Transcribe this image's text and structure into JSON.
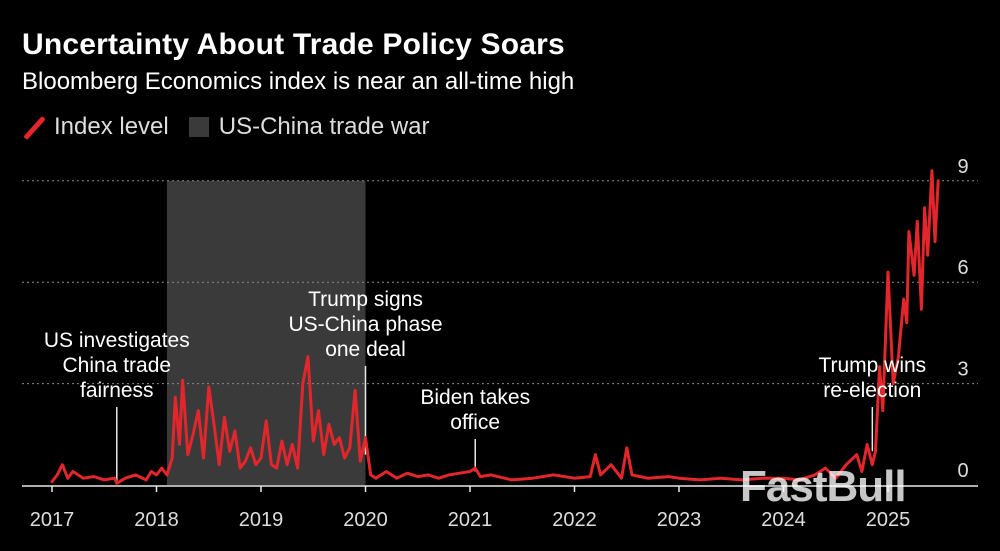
{
  "chart_data": {
    "type": "line",
    "title": "Uncertainty About Trade Policy Soars",
    "subtitle": "Bloomberg Economics index is near an all-time high",
    "legend": [
      {
        "label": "Index level",
        "color": "#e3262b",
        "kind": "line"
      },
      {
        "label": "US-China trade war",
        "color": "#3a3a3a",
        "kind": "box"
      }
    ],
    "xlim": [
      2017.0,
      2025.7
    ],
    "ylim": [
      -0.2,
      9.2
    ],
    "x_ticks": [
      2017,
      2018,
      2019,
      2020,
      2021,
      2022,
      2023,
      2024,
      2025
    ],
    "x_tick_labels": [
      "2017",
      "2018",
      "2019",
      "2020",
      "2021",
      "2022",
      "2023",
      "2024",
      "2025"
    ],
    "y_ticks": [
      0,
      3,
      6,
      9
    ],
    "y_tick_labels": [
      "0",
      "3",
      "6",
      "9"
    ],
    "shaded_region": {
      "label": "US-China trade war",
      "x_start": 2018.1,
      "x_end": 2020.0,
      "color": "#3a3a3a"
    },
    "annotations": [
      {
        "lines": [
          "US investigates",
          "China trade",
          "fairness"
        ],
        "x": 2017.62,
        "y": 0.05
      },
      {
        "lines": [
          "Trump signs",
          "US-China phase",
          "one deal"
        ],
        "x": 2020.0,
        "y": 0.9
      },
      {
        "lines": [
          "Biden takes",
          "office"
        ],
        "x": 2021.05,
        "y": 0.4
      },
      {
        "lines": [
          "Trump wins",
          "re-election"
        ],
        "x": 2024.85,
        "y": 1.0
      }
    ],
    "series": [
      {
        "name": "Index level",
        "color": "#e3262b",
        "x": [
          2017.0,
          2017.05,
          2017.1,
          2017.15,
          2017.2,
          2017.3,
          2017.4,
          2017.5,
          2017.6,
          2017.62,
          2017.7,
          2017.8,
          2017.9,
          2017.95,
          2018.0,
          2018.05,
          2018.1,
          2018.15,
          2018.18,
          2018.22,
          2018.25,
          2018.3,
          2018.35,
          2018.4,
          2018.45,
          2018.5,
          2018.55,
          2018.6,
          2018.65,
          2018.7,
          2018.75,
          2018.8,
          2018.85,
          2018.9,
          2018.95,
          2019.0,
          2019.05,
          2019.1,
          2019.15,
          2019.2,
          2019.25,
          2019.3,
          2019.35,
          2019.4,
          2019.45,
          2019.5,
          2019.55,
          2019.6,
          2019.65,
          2019.7,
          2019.75,
          2019.8,
          2019.85,
          2019.9,
          2019.95,
          2020.0,
          2020.05,
          2020.1,
          2020.2,
          2020.3,
          2020.4,
          2020.5,
          2020.6,
          2020.7,
          2020.8,
          2020.9,
          2021.0,
          2021.05,
          2021.1,
          2021.2,
          2021.4,
          2021.6,
          2021.8,
          2022.0,
          2022.15,
          2022.2,
          2022.25,
          2022.35,
          2022.45,
          2022.5,
          2022.55,
          2022.7,
          2022.9,
          2023.0,
          2023.2,
          2023.4,
          2023.6,
          2023.8,
          2024.0,
          2024.15,
          2024.3,
          2024.4,
          2024.5,
          2024.6,
          2024.7,
          2024.75,
          2024.8,
          2024.85,
          2024.88,
          2024.92,
          2024.95,
          2025.0,
          2025.05,
          2025.1,
          2025.15,
          2025.18,
          2025.2,
          2025.25,
          2025.28,
          2025.32,
          2025.35,
          2025.38,
          2025.42,
          2025.45,
          2025.48
        ],
        "values": [
          0.1,
          0.3,
          0.6,
          0.2,
          0.4,
          0.2,
          0.25,
          0.15,
          0.2,
          0.05,
          0.2,
          0.3,
          0.15,
          0.4,
          0.3,
          0.5,
          0.3,
          0.8,
          2.6,
          1.2,
          3.1,
          0.9,
          1.5,
          2.2,
          0.8,
          2.9,
          1.8,
          0.6,
          2.0,
          1.0,
          1.6,
          0.5,
          0.7,
          1.1,
          0.6,
          0.8,
          1.9,
          0.6,
          0.5,
          1.3,
          0.6,
          1.2,
          0.5,
          3.0,
          3.8,
          1.3,
          2.2,
          0.9,
          1.8,
          1.2,
          1.4,
          0.8,
          1.1,
          2.8,
          0.7,
          1.4,
          0.3,
          0.2,
          0.4,
          0.2,
          0.35,
          0.25,
          0.3,
          0.2,
          0.3,
          0.35,
          0.4,
          0.5,
          0.25,
          0.3,
          0.15,
          0.2,
          0.3,
          0.2,
          0.25,
          0.9,
          0.3,
          0.6,
          0.2,
          1.1,
          0.3,
          0.2,
          0.25,
          0.2,
          0.15,
          0.2,
          0.15,
          0.2,
          0.2,
          0.15,
          0.3,
          0.5,
          0.2,
          0.6,
          0.9,
          0.4,
          1.2,
          0.6,
          1.0,
          3.5,
          2.2,
          6.3,
          3.0,
          3.8,
          5.5,
          4.8,
          7.5,
          6.2,
          7.8,
          5.2,
          8.2,
          6.8,
          9.3,
          7.2,
          9.0
        ]
      }
    ]
  },
  "source_mark": "FastBull"
}
